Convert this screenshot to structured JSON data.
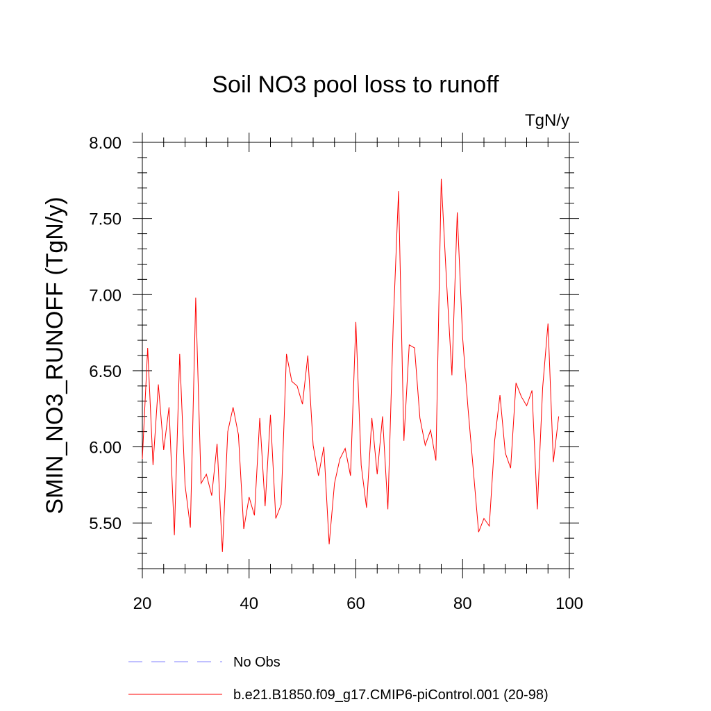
{
  "chart_data": {
    "type": "line",
    "title": "Soil NO3 pool loss to runoff",
    "units_label": "TgN/y",
    "xlabel": "",
    "ylabel": "SMIN_NO3_RUNOFF  (TgN/y)",
    "xlim": [
      20,
      100
    ],
    "ylim": [
      5.2,
      8.0
    ],
    "x_ticks": [
      20,
      40,
      60,
      80,
      100
    ],
    "x_tick_labels": [
      "20",
      "40",
      "60",
      "80",
      "100"
    ],
    "y_ticks": [
      5.5,
      6.0,
      6.5,
      7.0,
      7.5,
      8.0
    ],
    "y_tick_labels": [
      "5.50",
      "6.00",
      "6.50",
      "7.00",
      "7.50",
      "8.00"
    ],
    "grid": false,
    "legend_position": "bottom",
    "series": [
      {
        "name": "b.e21.B1850.f09_g17.CMIP6-piControl.001 (20-98)",
        "color": "#ff0000",
        "line_style": "solid",
        "x": [
          20,
          21,
          22,
          23,
          24,
          25,
          26,
          27,
          28,
          29,
          30,
          31,
          32,
          33,
          34,
          35,
          36,
          37,
          38,
          39,
          40,
          41,
          42,
          43,
          44,
          45,
          46,
          47,
          48,
          49,
          50,
          51,
          52,
          53,
          54,
          55,
          56,
          57,
          58,
          59,
          60,
          61,
          62,
          63,
          64,
          65,
          66,
          67,
          68,
          69,
          70,
          71,
          72,
          73,
          74,
          75,
          76,
          77,
          78,
          79,
          80,
          81,
          82,
          83,
          84,
          85,
          86,
          87,
          88,
          89,
          90,
          91,
          92,
          93,
          94,
          95,
          96,
          97,
          98
        ],
        "values": [
          5.92,
          6.65,
          5.88,
          6.41,
          5.98,
          6.26,
          5.42,
          6.61,
          5.75,
          5.47,
          6.98,
          5.76,
          5.82,
          5.68,
          6.02,
          5.31,
          6.1,
          6.26,
          6.08,
          5.46,
          5.67,
          5.55,
          6.19,
          5.61,
          6.21,
          5.53,
          5.62,
          6.61,
          6.43,
          6.4,
          6.28,
          6.6,
          6.01,
          5.81,
          6.0,
          5.36,
          5.76,
          5.92,
          5.99,
          5.81,
          6.82,
          5.88,
          5.6,
          6.19,
          5.82,
          6.2,
          5.59,
          6.8,
          7.68,
          6.04,
          6.67,
          6.65,
          6.19,
          6.01,
          6.11,
          5.91,
          7.76,
          7.08,
          6.47,
          7.54,
          6.72,
          6.26,
          5.85,
          5.44,
          5.53,
          5.48,
          6.04,
          6.34,
          5.96,
          5.86,
          6.42,
          6.33,
          6.27,
          6.37,
          5.59,
          6.39,
          6.81,
          5.9,
          6.2
        ]
      },
      {
        "name": "No Obs",
        "color": "#8080ff",
        "line_style": "dashed",
        "x": [],
        "values": []
      }
    ]
  }
}
